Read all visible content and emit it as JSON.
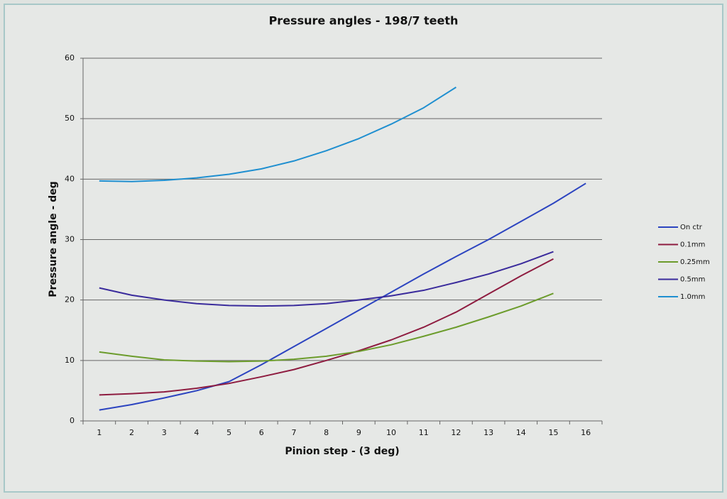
{
  "chart_data": {
    "type": "line",
    "title": "Pressure angles - 198/7 teeth",
    "xlabel": "Pinion step - (3 deg)",
    "ylabel": "Pressure angle - deg",
    "categories": [
      1,
      2,
      3,
      4,
      5,
      6,
      7,
      8,
      9,
      10,
      11,
      12,
      13,
      14,
      15,
      16
    ],
    "series": [
      {
        "name": "On ctr",
        "color": "#2c44c0",
        "values": [
          1.8,
          2.7,
          3.8,
          5.0,
          6.5,
          9.3,
          12.3,
          15.3,
          18.3,
          21.3,
          24.3,
          27.2,
          30.0,
          33.0,
          36.0,
          39.3
        ]
      },
      {
        "name": "0.1mm",
        "color": "#8e1c40",
        "values": [
          4.3,
          4.5,
          4.8,
          5.4,
          6.2,
          7.3,
          8.5,
          10.0,
          11.6,
          13.4,
          15.5,
          18.0,
          21.0,
          24.0,
          26.8,
          null
        ]
      },
      {
        "name": "0.25mm",
        "color": "#6c9c2c",
        "values": [
          11.4,
          10.7,
          10.1,
          9.9,
          9.8,
          9.9,
          10.2,
          10.7,
          11.5,
          12.6,
          14.0,
          15.5,
          17.2,
          19.0,
          21.1,
          null
        ]
      },
      {
        "name": "0.5mm",
        "color": "#3a2b9c",
        "values": [
          22.0,
          20.8,
          20.0,
          19.4,
          19.1,
          19.0,
          19.1,
          19.4,
          20.0,
          20.7,
          21.6,
          22.9,
          24.3,
          26.0,
          28.0,
          null
        ]
      },
      {
        "name": "1.0mm",
        "color": "#1f8fd0",
        "values": [
          39.7,
          39.6,
          39.8,
          40.2,
          40.8,
          41.7,
          43.0,
          44.7,
          46.7,
          49.1,
          51.8,
          55.2,
          null,
          null,
          null,
          null
        ]
      }
    ],
    "ylim": [
      0,
      60
    ],
    "yticks": [
      0,
      10,
      20,
      30,
      40,
      50,
      60
    ],
    "grid": true,
    "legend": "right"
  }
}
